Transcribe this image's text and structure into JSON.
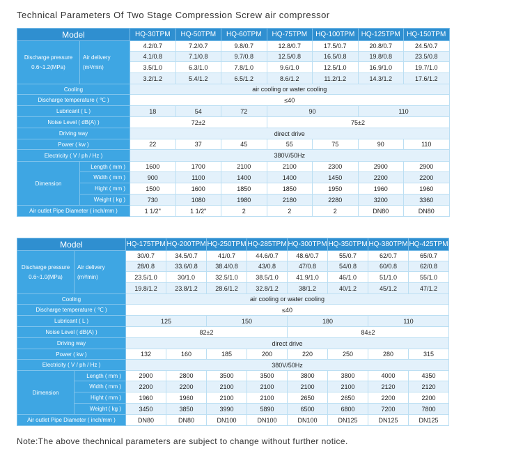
{
  "title": "Technical Parameters Of Two Stage Compression Screw air compressor",
  "note": "Note:The above thechnical parameters are subject to change without further notice.",
  "labels": {
    "model": "Model",
    "discharge_pressure": [
      "Discharge pressure",
      "0.6~1.2(MPa)"
    ],
    "discharge_pressure_2": [
      "Discharge pressure",
      "0.6~1.0(MPa)"
    ],
    "air_delivery": [
      "Air delivery",
      "(m³/min)"
    ],
    "cooling": "Cooling",
    "discharge_temp": "Discharge temperature ( ℃ )",
    "lubricant": "Lubricant ( L )",
    "noise": "Noise Level ( dB(A) )",
    "driving": "Driving way",
    "power": "Power ( kw )",
    "electricity": "Electricity ( V / ph / Hz )",
    "dimension": "Dimension",
    "length": "Length ( mm )",
    "width": "Width ( mm )",
    "height": "Hight ( mm )",
    "weight": "Weight ( kg )",
    "outlet_1": "Air outlet Pipe Diameter ( inch/mm )",
    "outlet_2": "Air outlet Pipe Diameter ( inch/mm )"
  },
  "table1": {
    "models": [
      "HQ-30TPM",
      "HQ-50TPM",
      "HQ-60TPM",
      "HQ-75TPM",
      "HQ-100TPM",
      "HQ-125TPM",
      "HQ-150TPM"
    ],
    "air_delivery": [
      [
        "4.2/0.7",
        "7.2/0.7",
        "9.8/0.7",
        "12.8/0.7",
        "17.5/0.7",
        "20.8/0.7",
        "24.5/0.7"
      ],
      [
        "4.1/0.8",
        "7.1/0.8",
        "9.7/0.8",
        "12.5/0.8",
        "16.5/0.8",
        "19.8/0.8",
        "23.5/0.8"
      ],
      [
        "3.5/1.0",
        "6.3/1.0",
        "7.8/1.0",
        "9.6/1.0",
        "12.5/1.0",
        "16.9/1.0",
        "19.7/1.0"
      ],
      [
        "3.2/1.2",
        "5.4/1.2",
        "6.5/1.2",
        "8.6/1.2",
        "11.2/1.2",
        "14.3/1.2",
        "17.6/1.2"
      ]
    ],
    "cooling": "air cooling or water cooling",
    "discharge_temp": "≤40",
    "lubricant": [
      [
        "18",
        1
      ],
      [
        "54",
        1
      ],
      [
        "72",
        1
      ],
      [
        "90",
        2
      ],
      [
        "110",
        2
      ]
    ],
    "noise": [
      [
        "72±2",
        3
      ],
      [
        "75±2",
        4
      ]
    ],
    "driving": "direct drive",
    "power": [
      "22",
      "37",
      "45",
      "55",
      "75",
      "90",
      "110"
    ],
    "electricity": "380V/50Hz",
    "length": [
      "1600",
      "1700",
      "2100",
      "2100",
      "2300",
      "2900",
      "2900"
    ],
    "width": [
      "900",
      "1100",
      "1400",
      "1400",
      "1450",
      "2200",
      "2200"
    ],
    "height": [
      "1500",
      "1600",
      "1850",
      "1850",
      "1950",
      "1960",
      "1960"
    ],
    "weight": [
      "730",
      "1080",
      "1980",
      "2180",
      "2280",
      "3200",
      "3360"
    ],
    "outlet": [
      "1 1/2\"",
      "1 1/2\"",
      "2",
      "2",
      "2",
      "DN80",
      "DN80"
    ]
  },
  "table2": {
    "models": [
      "HQ-175TPM",
      "HQ-200TPM",
      "HQ-250TPM",
      "HQ-285TPM",
      "HQ-300TPM",
      "HQ-350TPM",
      "HQ-380TPM",
      "HQ-425TPM"
    ],
    "air_delivery": [
      [
        "30/0.7",
        "34.5/0.7",
        "41/0.7",
        "44.6/0.7",
        "48.6/0.7",
        "55/0.7",
        "62/0.7",
        "65/0.7"
      ],
      [
        "28/0.8",
        "33.6/0.8",
        "38.4/0.8",
        "43/0.8",
        "47/0.8",
        "54/0.8",
        "60/0.8",
        "62/0.8"
      ],
      [
        "23.5/1.0",
        "30/1.0",
        "32.5/1.0",
        "38.5/1.0",
        "41.9/1.0",
        "46/1.0",
        "51/1.0",
        "55/1.0"
      ],
      [
        "19.8/1.2",
        "23.8/1.2",
        "28.6/1.2",
        "32.8/1.2",
        "38/1.2",
        "40/1.2",
        "45/1.2",
        "47/1.2"
      ]
    ],
    "cooling": "air cooling or water cooling",
    "discharge_temp": "≤40",
    "lubricant": [
      [
        "125",
        2
      ],
      [
        "150",
        2
      ],
      [
        "180",
        2
      ],
      [
        "110",
        2
      ]
    ],
    "noise": [
      [
        "82±2",
        4
      ],
      [
        "84±2",
        4
      ]
    ],
    "driving": "direct drive",
    "power": [
      "132",
      "160",
      "185",
      "200",
      "220",
      "250",
      "280",
      "315"
    ],
    "electricity": "380V/50Hz",
    "length": [
      "2900",
      "2800",
      "3500",
      "3500",
      "3800",
      "3800",
      "4000",
      "4350"
    ],
    "width": [
      "2200",
      "2200",
      "2100",
      "2100",
      "2100",
      "2100",
      "2120",
      "2120"
    ],
    "height": [
      "1960",
      "1960",
      "2100",
      "2100",
      "2650",
      "2650",
      "2200",
      "2200"
    ],
    "weight": [
      "3450",
      "3850",
      "3990",
      "5890",
      "6500",
      "6800",
      "7200",
      "7800"
    ],
    "outlet": [
      "DN80",
      "DN80",
      "DN100",
      "DN100",
      "DN100",
      "DN125",
      "DN125",
      "DN125"
    ]
  }
}
